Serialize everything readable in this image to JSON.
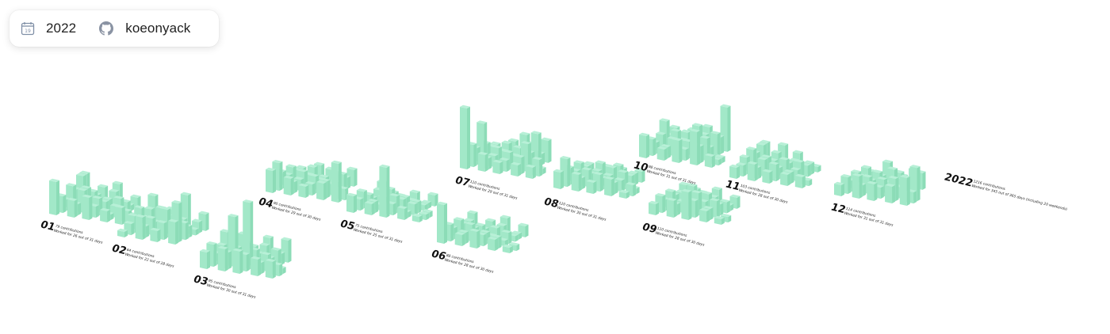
{
  "toolbar": {
    "year": "2022",
    "username": "koeonyack",
    "calendar_icon": "calendar-icon",
    "github_icon": "github-icon"
  },
  "colors": {
    "bar_top": "#b8f0d7",
    "bar_front": "#a2e8c8",
    "bar_side": "#8cdcb7",
    "label": "#111111"
  },
  "summary": {
    "year": "2022",
    "line1": "1216 contributions",
    "line2": "Worked for 345 out of 365 days (including 20 weekends)"
  },
  "months": [
    {
      "num": "01",
      "line1": "79 contributions",
      "line2": "Worked for 26 out of 31 days",
      "bars": [
        6,
        3,
        2,
        4,
        3,
        5,
        5,
        3,
        2,
        4,
        4,
        3,
        2,
        3,
        4,
        2,
        3,
        2,
        2,
        3,
        4,
        2,
        1,
        2,
        3,
        2,
        1,
        2,
        3,
        2,
        1
      ]
    },
    {
      "num": "02",
      "line1": "64 contributions",
      "line2": "Worked for 22 out of 28 days",
      "bars": [
        1,
        2,
        3,
        4,
        2,
        3,
        5,
        4,
        2,
        3,
        2,
        4,
        3,
        3,
        2,
        3,
        5,
        2,
        3,
        2,
        6,
        4,
        7,
        3,
        2,
        1,
        2,
        3
      ]
    },
    {
      "num": "03",
      "line1": "95 contributions",
      "line2": "Worked for 30 out of 31 days",
      "bars": [
        3,
        4,
        2,
        3,
        5,
        2,
        3,
        4,
        3,
        9,
        3,
        5,
        3,
        2,
        4,
        3,
        12,
        3,
        2,
        3,
        4,
        3,
        2,
        3,
        2,
        3,
        2,
        4,
        3,
        2,
        1
      ]
    },
    {
      "num": "04",
      "line1": "90 contributions",
      "line2": "Worked for 29 out of 30 days",
      "bars": [
        4,
        5,
        3,
        2,
        3,
        2,
        2,
        3,
        2,
        2,
        3,
        2,
        3,
        3,
        2,
        2,
        3,
        2,
        2,
        3,
        2,
        3,
        3,
        2,
        2,
        3,
        2,
        3,
        7,
        2
      ]
    },
    {
      "num": "05",
      "line1": "75 contributions",
      "line2": "Worked for 25 out of 31 days",
      "bars": [
        3,
        2,
        3,
        2,
        1,
        2,
        3,
        2,
        2,
        1,
        2,
        3,
        2,
        1,
        9,
        2,
        3,
        2,
        2,
        1,
        2,
        2,
        1,
        2,
        2,
        1,
        1,
        2,
        1,
        1,
        1
      ]
    },
    {
      "num": "06",
      "line1": "88 contributions",
      "line2": "Worked for 28 out of 30 days",
      "bars": [
        7,
        3,
        2,
        3,
        2,
        2,
        3,
        2,
        2,
        3,
        2,
        2,
        1,
        2,
        3,
        2,
        2,
        1,
        2,
        2,
        3,
        2,
        2,
        1,
        2,
        1,
        1,
        2,
        1,
        1
      ]
    },
    {
      "num": "07",
      "line1": "110 contributions",
      "line2": "Worked for 29 out of 31 days",
      "bars": [
        11,
        4,
        3,
        7,
        3,
        2,
        2,
        3,
        2,
        2,
        3,
        2,
        3,
        3,
        2,
        2,
        3,
        2,
        3,
        5,
        3,
        2,
        3,
        5,
        3,
        6,
        2,
        4,
        2,
        3,
        1
      ]
    },
    {
      "num": "08",
      "line1": "120 contributions",
      "line2": "Worked for 30 out of 31 days",
      "bars": [
        3,
        5,
        3,
        2,
        3,
        2,
        2,
        3,
        2,
        3,
        2,
        2,
        3,
        2,
        2,
        3,
        2,
        2,
        3,
        3,
        2,
        3,
        2,
        2,
        3,
        2,
        2,
        2,
        1,
        2,
        1
      ]
    },
    {
      "num": "09",
      "line1": "110 contributions",
      "line2": "Worked for 28 out of 30 days",
      "bars": [
        2,
        3,
        2,
        3,
        2,
        2,
        3,
        3,
        2,
        2,
        3,
        4,
        3,
        2,
        5,
        3,
        4,
        2,
        3,
        2,
        3,
        2,
        2,
        3,
        2,
        2,
        1,
        2,
        1,
        1
      ]
    },
    {
      "num": "10",
      "line1": "98 contributions",
      "line2": "Worked for 31 out of 31 days",
      "bars": [
        4,
        3,
        2,
        3,
        5,
        2,
        3,
        2,
        2,
        3,
        4,
        2,
        3,
        3,
        4,
        2,
        3,
        2,
        5,
        3,
        4,
        6,
        3,
        4,
        2,
        4,
        3,
        8,
        2,
        1,
        1
      ]
    },
    {
      "num": "11",
      "line1": "103 contributions",
      "line2": "Worked for 28 out of 30 days",
      "bars": [
        2,
        2,
        3,
        4,
        3,
        4,
        4,
        3,
        2,
        3,
        3,
        2,
        3,
        4,
        2,
        3,
        2,
        3,
        2,
        2,
        3,
        2,
        2,
        2,
        3,
        2,
        2,
        1,
        2,
        1
      ]
    },
    {
      "num": "12",
      "line1": "114 contributions",
      "line2": "Worked for 31 out of 31 days",
      "bars": [
        2,
        3,
        2,
        3,
        2,
        3,
        2,
        4,
        2,
        3,
        2,
        3,
        2,
        4,
        3,
        2,
        3,
        2,
        4,
        3,
        2,
        3,
        4,
        2,
        3,
        2,
        4,
        3,
        5,
        2,
        6
      ]
    }
  ]
}
